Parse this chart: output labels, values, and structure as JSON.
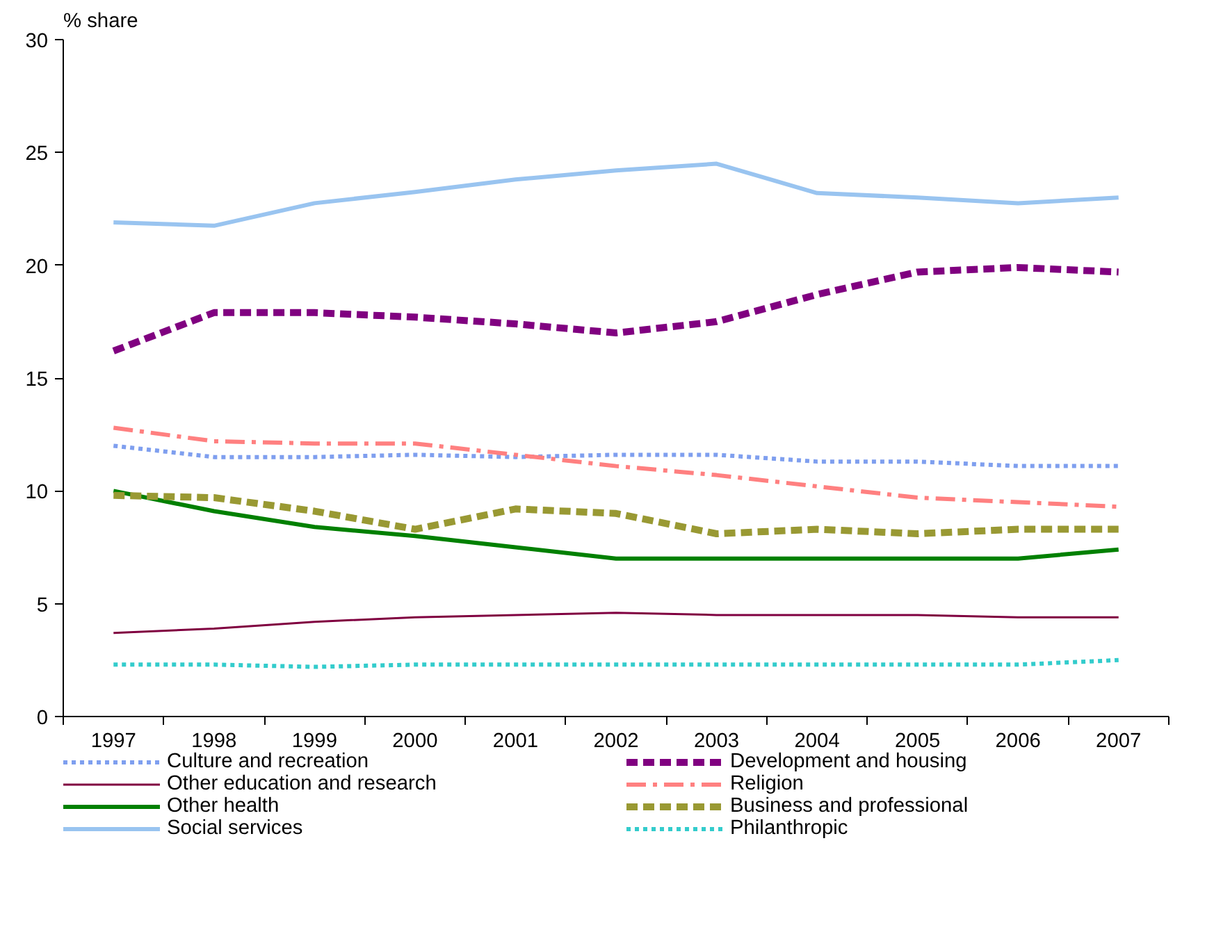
{
  "chart_data": {
    "type": "line",
    "ylabel": "% share",
    "categories": [
      "1997",
      "1998",
      "1999",
      "2000",
      "2001",
      "2002",
      "2003",
      "2004",
      "2005",
      "2006",
      "2007"
    ],
    "ylim": [
      0,
      30
    ],
    "yticks": [
      0,
      5,
      10,
      15,
      20,
      25,
      30
    ],
    "grid": false,
    "legend": "bottom",
    "series": [
      {
        "name": "Culture and recreation",
        "color": "#7f9fef",
        "line_style": "dotted",
        "values": [
          12.0,
          11.5,
          11.5,
          11.6,
          11.5,
          11.6,
          11.6,
          11.3,
          11.3,
          11.1,
          11.1
        ]
      },
      {
        "name": "Other education and research",
        "color": "#800040",
        "line_style": "solid",
        "values": [
          3.7,
          3.9,
          4.2,
          4.4,
          4.5,
          4.6,
          4.5,
          4.5,
          4.5,
          4.4,
          4.4
        ]
      },
      {
        "name": "Other health",
        "color": "#008000",
        "line_style": "solid",
        "values": [
          10.0,
          9.1,
          8.4,
          8.0,
          7.5,
          7.0,
          7.0,
          7.0,
          7.0,
          7.0,
          7.4
        ]
      },
      {
        "name": "Social services",
        "color": "#99c4f0",
        "line_style": "solid",
        "values": [
          21.9,
          21.75,
          22.75,
          23.25,
          23.8,
          24.2,
          24.5,
          23.2,
          23.0,
          22.75,
          23.0
        ]
      },
      {
        "name": "Development and housing",
        "color": "#800080",
        "line_style": "dashed",
        "values": [
          16.2,
          17.9,
          17.9,
          17.7,
          17.4,
          17.0,
          17.5,
          18.7,
          19.7,
          19.9,
          19.7
        ]
      },
      {
        "name": "Religion",
        "color": "#ff8080",
        "line_style": "dashdot",
        "values": [
          12.8,
          12.2,
          12.1,
          12.1,
          11.6,
          11.1,
          10.7,
          10.2,
          9.7,
          9.5,
          9.3
        ]
      },
      {
        "name": "Business and professional",
        "color": "#999933",
        "line_style": "dashed",
        "values": [
          9.8,
          9.7,
          9.1,
          8.3,
          9.2,
          9.0,
          8.1,
          8.3,
          8.1,
          8.3,
          8.3
        ]
      },
      {
        "name": "Philanthropic",
        "color": "#33cccc",
        "line_style": "dotted",
        "values": [
          2.3,
          2.3,
          2.2,
          2.3,
          2.3,
          2.3,
          2.3,
          2.3,
          2.3,
          2.3,
          2.5
        ]
      }
    ]
  }
}
